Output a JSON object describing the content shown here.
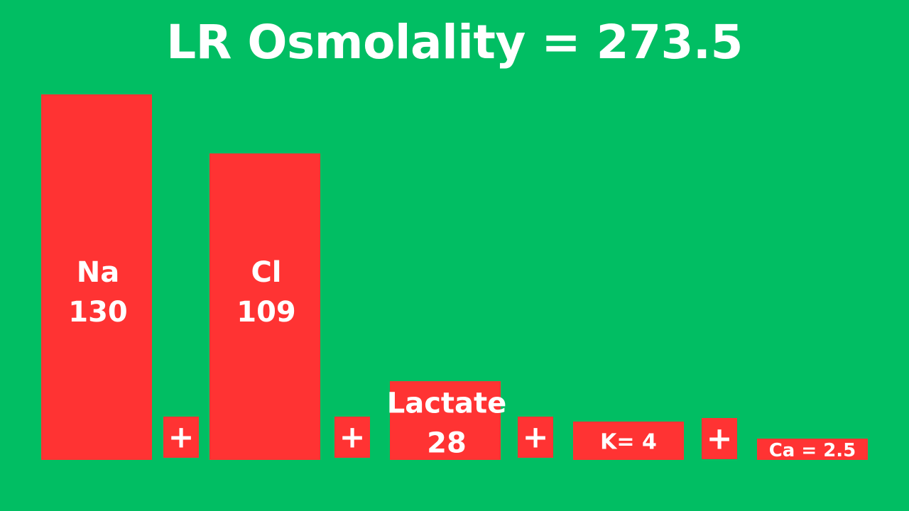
{
  "colors": {
    "background": "#01BE63",
    "bar": "#FF3333",
    "text": "#FFFFFF"
  },
  "plus_symbol": "+",
  "chart_data": {
    "type": "bar",
    "title": "LR Osmolality = 273.5",
    "categories": [
      "Na",
      "Cl",
      "Lactate",
      "K",
      "Ca"
    ],
    "values": [
      130,
      109,
      28,
      4,
      2.5
    ],
    "bar_labels": [
      [
        "Na",
        "130"
      ],
      [
        "Cl",
        "109"
      ],
      [
        "Lactate",
        "28"
      ],
      [
        "K= 4"
      ],
      [
        "Ca = 2.5"
      ]
    ],
    "ylim": [
      0,
      130
    ],
    "grid": false,
    "legend": "none",
    "xlabel": "",
    "ylabel": ""
  }
}
